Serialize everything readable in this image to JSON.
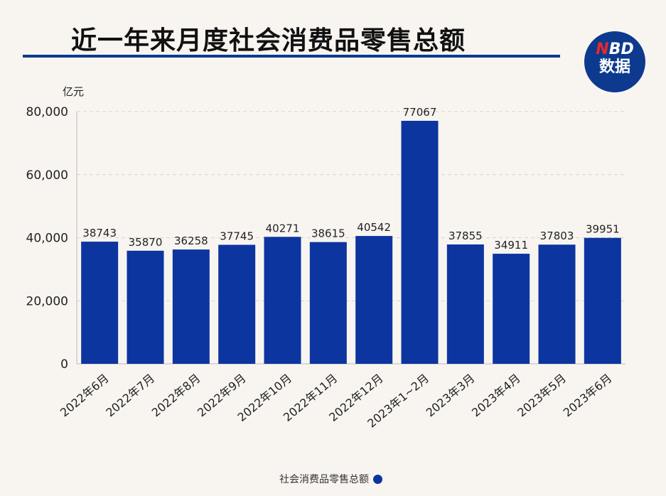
{
  "header": {
    "title": "近一年来月度社会消费品零售总额",
    "logo_text": "NBD数据"
  },
  "colors": {
    "bar": "#0d35a0",
    "title_line": "#0d3a8f",
    "logo_bg": "#0d3a8f",
    "logo_accent": "#e32a2a"
  },
  "chart_data": {
    "type": "bar",
    "title": "近一年来月度社会消费品零售总额",
    "ylabel": "亿元",
    "ylim": [
      0,
      80000
    ],
    "yticks": [
      "0",
      "20,000",
      "40,000",
      "60,000",
      "80,000"
    ],
    "grid": true,
    "legend_position": "bottom",
    "categories": [
      "2022年6月",
      "2022年7月",
      "2022年8月",
      "2022年9月",
      "2022年10月",
      "2022年11月",
      "2022年12月",
      "2023年1~2月",
      "2023年3月",
      "2023年4月",
      "2023年5月",
      "2023年6月"
    ],
    "series": [
      {
        "name": "社会消费品零售总额",
        "values": [
          38743,
          35870,
          36258,
          37745,
          40271,
          38615,
          40542,
          77067,
          37855,
          34911,
          37803,
          39951
        ]
      }
    ]
  }
}
